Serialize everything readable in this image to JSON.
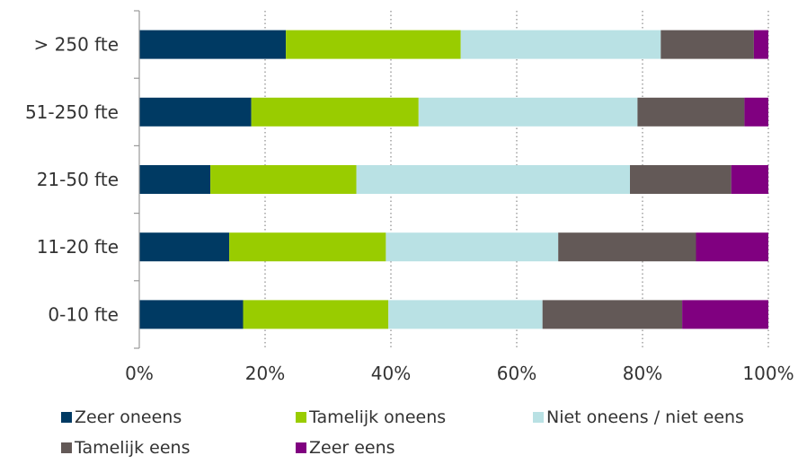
{
  "chart_data": {
    "type": "bar",
    "orientation": "horizontal",
    "stacked": true,
    "percent": true,
    "categories": [
      "> 250 fte",
      "51-250 fte",
      "21-50 fte",
      "11-20 fte",
      "0-10 fte"
    ],
    "series": [
      {
        "name": "Zeer oneens",
        "color": "#003A63",
        "values": [
          23.3,
          17.8,
          11.3,
          14.3,
          16.5
        ]
      },
      {
        "name": "Tamelijk oneens",
        "color": "#99CC00",
        "values": [
          27.8,
          26.6,
          23.2,
          24.9,
          23.1
        ]
      },
      {
        "name": "Niet oneens / niet eens",
        "color": "#B9E1E4",
        "values": [
          31.8,
          34.8,
          43.5,
          27.4,
          24.5
        ]
      },
      {
        "name": "Tamelijk eens",
        "color": "#635957",
        "values": [
          14.8,
          17.0,
          16.1,
          21.9,
          22.2
        ]
      },
      {
        "name": "Zeer eens",
        "color": "#800080",
        "values": [
          2.3,
          3.8,
          5.9,
          11.5,
          13.7
        ]
      }
    ],
    "xlim": [
      0,
      100
    ],
    "xticks": [
      "0%",
      "20%",
      "40%",
      "60%",
      "80%",
      "100%"
    ],
    "grid": "vertical dotted",
    "legend_position": "bottom"
  }
}
